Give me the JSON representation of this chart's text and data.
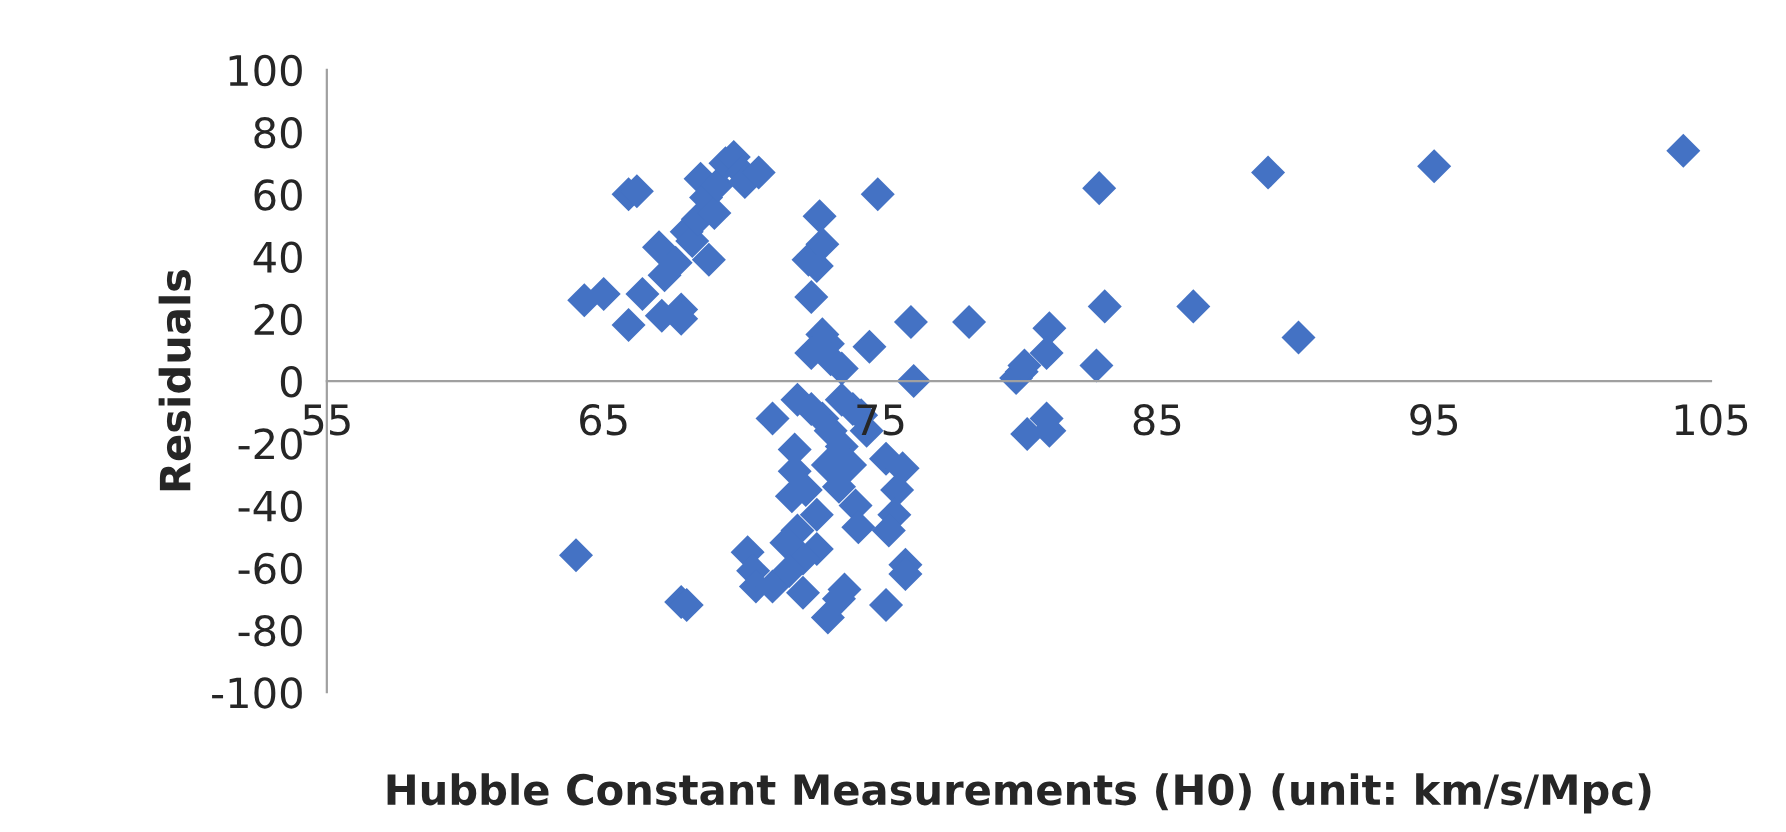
{
  "chart_data": {
    "type": "scatter",
    "xlabel": "Hubble Constant Measurements (H0) (unit: km/s/Mpc)",
    "ylabel": "Residuals",
    "series": [
      {
        "color": "#4472c4",
        "x": [
          64.0,
          64.3,
          65.0,
          65.9,
          66.2,
          65.9,
          66.4,
          67.0,
          67.1,
          67.2,
          67.6,
          67.8,
          68.0,
          67.8,
          68.2,
          68.4,
          68.5,
          68.7,
          68.8,
          69.0,
          69.1,
          69.4,
          69.7,
          70.0,
          70.1,
          70.6,
          67.8,
          68.0,
          72.7,
          72.4,
          72.5,
          72.8,
          72.9,
          72.9,
          73.1,
          73.2,
          73.6,
          72.5,
          74.6,
          74.9,
          76.1,
          76.2,
          78.2,
          80.1,
          79.9,
          80.2,
          81.1,
          81.0,
          82.9,
          83.1,
          82.8,
          86.3,
          89.0,
          90.1,
          95.0,
          104.0,
          71.1,
          72.0,
          72.5,
          72.9,
          73.2,
          73.6,
          74.0,
          74.3,
          74.5,
          75.2,
          75.8,
          75.6,
          75.5,
          74.1,
          74.2,
          75.3,
          75.9,
          75.9,
          75.2,
          73.1,
          73.5,
          73.7,
          72.7,
          72.0,
          71.8,
          71.9,
          71.9,
          72.3,
          72.7,
          72.2,
          71.6,
          70.2,
          70.4,
          70.5,
          71.1,
          71.7,
          72.2,
          73.1,
          73.5,
          73.6,
          73.9,
          80.3,
          81.1,
          81.0
        ],
        "values": [
          -56,
          26,
          28,
          60,
          61,
          18,
          28,
          43,
          21,
          34,
          38,
          23,
          48,
          20,
          45,
          52,
          65,
          59,
          39,
          54,
          63,
          70,
          72,
          67,
          64,
          67,
          -71,
          -72,
          37,
          39,
          27,
          53,
          44,
          15,
          12,
          7,
          4,
          9,
          11,
          60,
          19,
          0,
          19,
          3,
          1,
          5,
          17,
          9,
          62,
          24,
          5,
          24,
          67,
          14,
          69,
          74,
          -12,
          -6,
          -9,
          -12,
          -16,
          -6,
          -9,
          -11,
          -16,
          -25,
          -28,
          -35,
          -43,
          -40,
          -47,
          -48,
          -59,
          -62,
          -72,
          -76,
          -70,
          -67,
          -54,
          -48,
          -37,
          -29,
          -22,
          -35,
          -43,
          -57,
          -52,
          -55,
          -61,
          -66,
          -66,
          -61,
          -68,
          -27,
          -34,
          -21,
          -27,
          -17,
          -16,
          -12
        ]
      }
    ],
    "xlim": [
      55,
      105
    ],
    "xticks": [
      55,
      65,
      75,
      85,
      95,
      105
    ],
    "ylim": [
      -100,
      100
    ],
    "yticks": [
      -100,
      -80,
      -60,
      -40,
      -20,
      0,
      20,
      40,
      60,
      80,
      100
    ],
    "marker": "diamond",
    "grid": false,
    "legend": false
  }
}
